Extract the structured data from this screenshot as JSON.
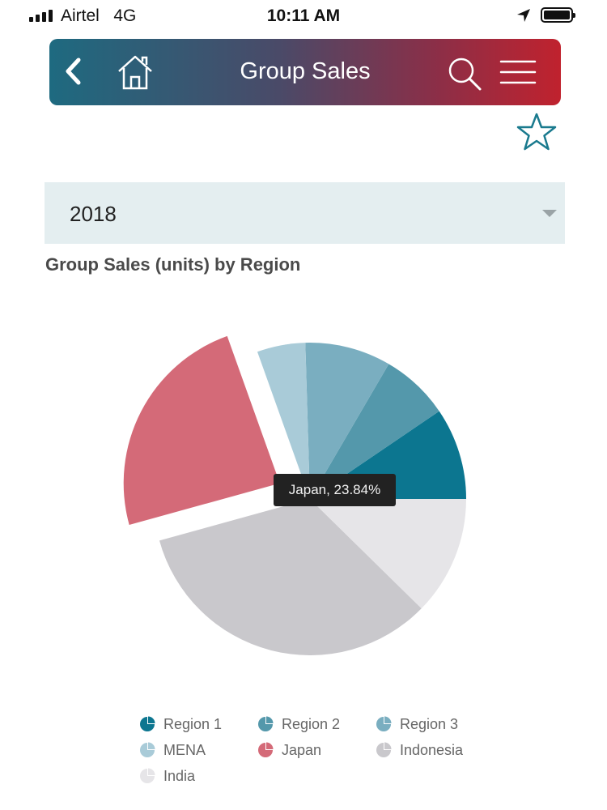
{
  "status_bar": {
    "carrier": "Airtel",
    "network": "4G",
    "time": "10:11 AM"
  },
  "nav": {
    "title": "Group Sales",
    "back_icon": "chevron-left-icon",
    "home_icon": "home-icon",
    "search_icon": "search-icon",
    "menu_icon": "hamburger-menu-icon"
  },
  "favorite_icon": "star-outline-icon",
  "year_select": {
    "selected": "2018"
  },
  "tooltip": {
    "text": "Japan, 23.84%"
  },
  "chart_data": {
    "type": "pie",
    "title": "Group Sales (units) by Region",
    "unit": "%",
    "slices": [
      {
        "label": "Region 1",
        "value": 9.5,
        "color": "#0c7690"
      },
      {
        "label": "Region 2",
        "value": 7.1,
        "color": "#5498ab"
      },
      {
        "label": "Region 3",
        "value": 8.9,
        "color": "#7aaec0"
      },
      {
        "label": "MENA",
        "value": 5.0,
        "color": "#a9cbd8"
      },
      {
        "label": "Japan",
        "value": 23.84,
        "color": "#d46a78",
        "exploded": true
      },
      {
        "label": "Indonesia",
        "value": 33.4,
        "color": "#c9c8cc"
      },
      {
        "label": "India",
        "value": 12.36,
        "color": "#e6e5e8"
      }
    ],
    "legend_position": "bottom"
  }
}
